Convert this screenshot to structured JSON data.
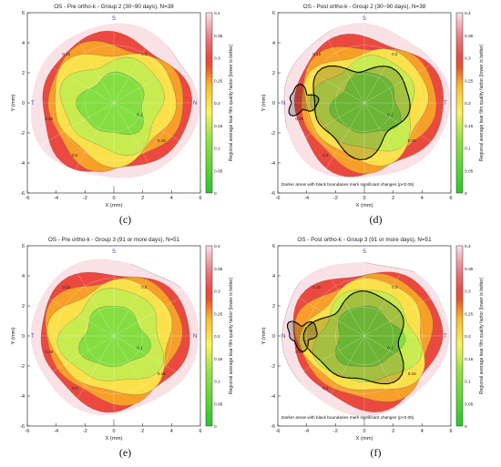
{
  "figure": {
    "captions": [
      "(c)",
      "(d)",
      "(e)",
      "(f)"
    ]
  },
  "chart_data": [
    {
      "type": "heatmap",
      "panel": "c",
      "title": "OS - Pre ortho-k - Group 2 (30~90 days), N=38",
      "xlabel": "X (mm)",
      "ylabel": "Y (mm)",
      "xlim": [
        -6,
        6
      ],
      "ylim": [
        -6,
        6
      ],
      "xticks": [
        "-6",
        "-4",
        "-2",
        "0",
        "2",
        "4",
        "6"
      ],
      "yticks": [
        "-6",
        "-4",
        "-2",
        "0",
        "2",
        "4",
        "6"
      ],
      "colorbar": {
        "label": "Regional average tear film quality factor (lower is better)",
        "ticks": [
          "0",
          "0.05",
          "0.1",
          "0.15",
          "0.2",
          "0.25",
          "0.3",
          "0.35",
          "0.4"
        ],
        "range": [
          0,
          0.4
        ]
      },
      "orientation": {
        "top": "S",
        "bottom": "I",
        "left": "T",
        "right": "N"
      },
      "contour_levels": [
        0.15,
        0.2,
        0.25,
        0.3
      ],
      "contour_labels": [
        "0.15",
        "0.2",
        "0.25",
        "0.1",
        "0.15",
        "0.2"
      ],
      "note": "",
      "significant_regions": false
    },
    {
      "type": "heatmap",
      "panel": "d",
      "title": "OS - Post ortho-k - Group 2 (30~90 days), N=38",
      "xlabel": "X (mm)",
      "ylabel": "Y (mm)",
      "xlim": [
        -6,
        6
      ],
      "ylim": [
        -6,
        6
      ],
      "xticks": [
        "-6",
        "-4",
        "-2",
        "0",
        "2",
        "4",
        "6"
      ],
      "yticks": [
        "-6",
        "-4",
        "-2",
        "0",
        "2",
        "4",
        "6"
      ],
      "colorbar": {
        "label": "Regional average tear film quality factor (lower is better)",
        "ticks": [
          "0",
          "0.05",
          "0.1",
          "0.15",
          "0.2",
          "0.25",
          "0.3",
          "0.35",
          "0.4"
        ],
        "range": [
          0,
          0.4
        ]
      },
      "orientation": {
        "top": "S",
        "bottom": "I",
        "left": "N",
        "right": "T"
      },
      "contour_levels": [
        0.15,
        0.2,
        0.25,
        0.3
      ],
      "contour_labels": [
        "0.15",
        "0.2",
        "0.25",
        "0.1",
        "0.15",
        "0.2"
      ],
      "note": "Darker areas with black boundaries mark significant changes (p<0.05)",
      "significant_regions": true
    },
    {
      "type": "heatmap",
      "panel": "e",
      "title": "OS - Pre ortho-k - Group 3 (91 or more days), N=51",
      "xlabel": "X (mm)",
      "ylabel": "Y (mm)",
      "xlim": [
        -6,
        6
      ],
      "ylim": [
        -6,
        6
      ],
      "xticks": [
        "-6",
        "-4",
        "-2",
        "0",
        "2",
        "4",
        "6"
      ],
      "yticks": [
        "-6",
        "-4",
        "-2",
        "0",
        "2",
        "4",
        "6"
      ],
      "colorbar": {
        "label": "Regional average tear film quality factor (lower is better)",
        "ticks": [
          "0",
          "0.05",
          "0.1",
          "0.15",
          "0.2",
          "0.25",
          "0.3",
          "0.35",
          "0.4"
        ],
        "range": [
          0,
          0.4
        ]
      },
      "orientation": {
        "top": "S",
        "bottom": "I",
        "left": "T",
        "right": "N"
      },
      "contour_levels": [
        0.15,
        0.2,
        0.25,
        0.3
      ],
      "contour_labels": [
        "0.15",
        "0.2",
        "0.25",
        "0.1",
        "0.15",
        "0.2"
      ],
      "note": "",
      "significant_regions": false
    },
    {
      "type": "heatmap",
      "panel": "f",
      "title": "OS - Post ortho-k - Group 3 (91 or more days), N=51",
      "xlabel": "X (mm)",
      "ylabel": "Y (mm)",
      "xlim": [
        -6,
        6
      ],
      "ylim": [
        -6,
        6
      ],
      "xticks": [
        "-6",
        "-4",
        "-2",
        "0",
        "2",
        "4",
        "6"
      ],
      "yticks": [
        "-6",
        "-4",
        "-2",
        "0",
        "2",
        "4",
        "6"
      ],
      "colorbar": {
        "label": "Regional average tear film quality factor (lower is better)",
        "ticks": [
          "0",
          "0.05",
          "0.1",
          "0.15",
          "0.2",
          "0.25",
          "0.3",
          "0.35",
          "0.4"
        ],
        "range": [
          0,
          0.4
        ]
      },
      "orientation": {
        "top": "S",
        "bottom": "I",
        "left": "N",
        "right": "T"
      },
      "contour_levels": [
        0.15,
        0.2,
        0.25,
        0.3
      ],
      "contour_labels": [
        "0.15",
        "0.2",
        "0.25",
        "0.1",
        "0.15",
        "0.2"
      ],
      "note": "Darker areas with black boundaries mark significant changes (p<0.05)",
      "significant_regions": true
    }
  ]
}
